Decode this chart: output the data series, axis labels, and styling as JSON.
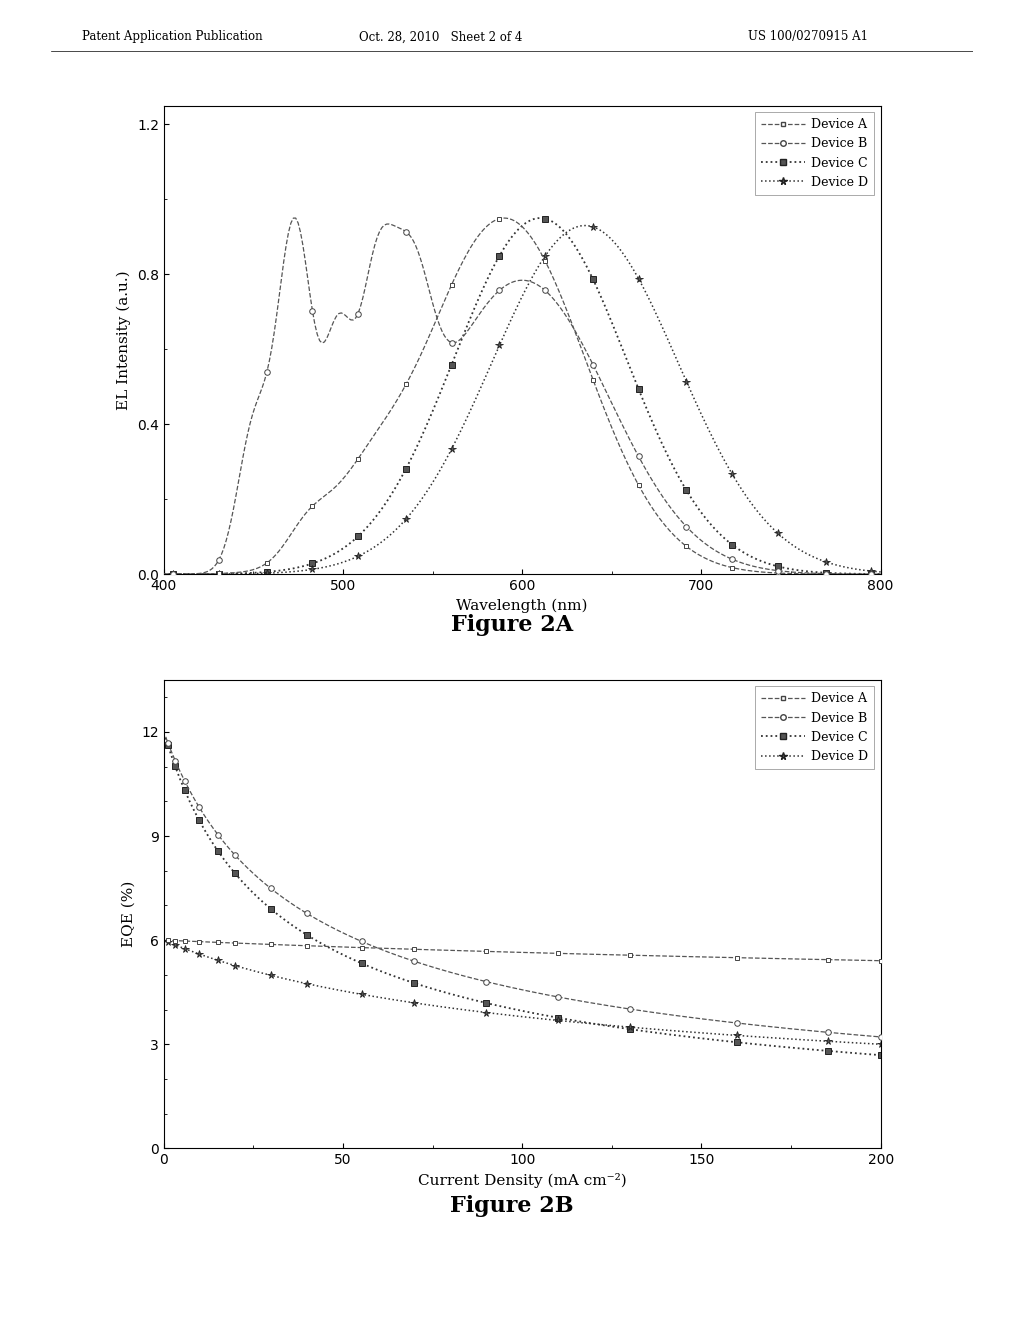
{
  "header_left": "Patent Application Publication",
  "header_center": "Oct. 28, 2010   Sheet 2 of 4",
  "header_right": "US 100/0270915 A1",
  "fig2a_xlabel": "Wavelength (nm)",
  "fig2a_ylabel": "EL Intensity (a.u.)",
  "fig2a_xlim": [
    400,
    800
  ],
  "fig2a_ylim": [
    0.0,
    1.25
  ],
  "fig2a_yticks": [
    0.0,
    0.4,
    0.8,
    1.2
  ],
  "fig2a_xticks": [
    400,
    500,
    600,
    700,
    800
  ],
  "fig2b_xlabel": "Current Density (mA cm⁻²)",
  "fig2b_ylabel": "EQE (%)",
  "fig2b_xlim": [
    0,
    200
  ],
  "fig2b_ylim": [
    0,
    13.5
  ],
  "fig2b_yticks": [
    0,
    3,
    6,
    9,
    12
  ],
  "fig2b_xticks": [
    0,
    50,
    100,
    150,
    200
  ],
  "fig2a_caption": "Figure 2A",
  "fig2b_caption": "Figure 2B",
  "background_color": "#ffffff"
}
